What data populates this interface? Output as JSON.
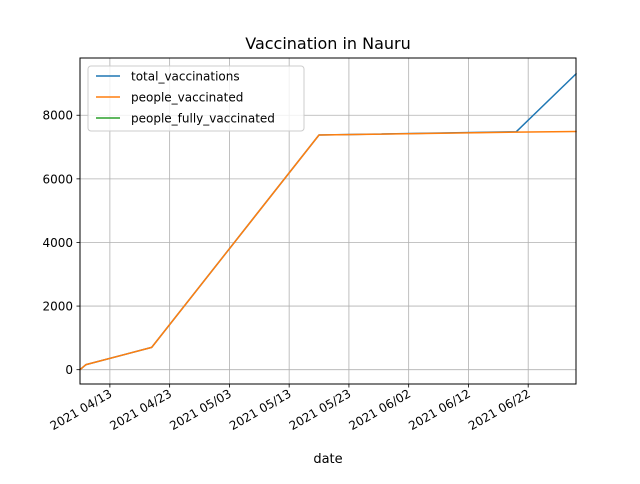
{
  "chart_data": {
    "type": "line",
    "title": "Vaccination in Nauru",
    "xlabel": "date",
    "ylabel": "",
    "x_type": "date",
    "xlim": [
      "2021-04-08",
      "2021-06-30"
    ],
    "ylim": [
      -450,
      9800
    ],
    "grid": true,
    "legend_position": "upper-left",
    "x_ticks": [
      {
        "date": "2021-04-13",
        "label": "2021 04/13"
      },
      {
        "date": "2021-04-23",
        "label": "2021 04/23"
      },
      {
        "date": "2021-05-03",
        "label": "2021 05/03"
      },
      {
        "date": "2021-05-13",
        "label": "2021 05/13"
      },
      {
        "date": "2021-05-23",
        "label": "2021 05/23"
      },
      {
        "date": "2021-06-02",
        "label": "2021 06/02"
      },
      {
        "date": "2021-06-12",
        "label": "2021 06/12"
      },
      {
        "date": "2021-06-22",
        "label": "2021 06/22"
      }
    ],
    "y_ticks": [
      0,
      2000,
      4000,
      6000,
      8000
    ],
    "series": [
      {
        "name": "total_vaccinations",
        "color": "#1f77b4",
        "points": [
          {
            "x": "2021-04-08",
            "y": 0
          },
          {
            "x": "2021-04-09",
            "y": 160
          },
          {
            "x": "2021-04-20",
            "y": 700
          },
          {
            "x": "2021-05-18",
            "y": 7380
          },
          {
            "x": "2021-06-20",
            "y": 7480
          },
          {
            "x": "2021-06-30",
            "y": 9300
          }
        ]
      },
      {
        "name": "people_vaccinated",
        "color": "#ff7f0e",
        "points": [
          {
            "x": "2021-04-08",
            "y": 0
          },
          {
            "x": "2021-04-09",
            "y": 160
          },
          {
            "x": "2021-04-20",
            "y": 700
          },
          {
            "x": "2021-05-18",
            "y": 7380
          },
          {
            "x": "2021-06-20",
            "y": 7470
          },
          {
            "x": "2021-06-30",
            "y": 7490
          }
        ]
      },
      {
        "name": "people_fully_vaccinated",
        "color": "#2ca02c",
        "points": []
      }
    ]
  }
}
